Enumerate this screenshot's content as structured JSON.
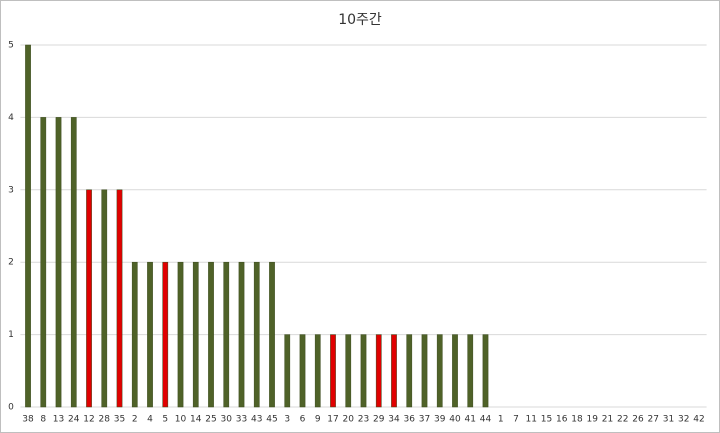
{
  "chart_data": {
    "type": "bar",
    "title": "10주간",
    "categories": [
      "38",
      "8",
      "13",
      "24",
      "12",
      "28",
      "35",
      "2",
      "4",
      "5",
      "10",
      "14",
      "25",
      "30",
      "33",
      "43",
      "45",
      "3",
      "6",
      "9",
      "17",
      "20",
      "23",
      "29",
      "34",
      "36",
      "37",
      "39",
      "40",
      "41",
      "44",
      "1",
      "7",
      "11",
      "15",
      "16",
      "18",
      "19",
      "21",
      "22",
      "26",
      "27",
      "31",
      "32",
      "42"
    ],
    "values": [
      5,
      4,
      4,
      4,
      3,
      3,
      3,
      2,
      2,
      2,
      2,
      2,
      2,
      2,
      2,
      2,
      2,
      1,
      1,
      1,
      1,
      1,
      1,
      1,
      1,
      1,
      1,
      1,
      1,
      1,
      1,
      0,
      0,
      0,
      0,
      0,
      0,
      0,
      0,
      0,
      0,
      0,
      0,
      0,
      0
    ],
    "colors": [
      "#4f6228",
      "#4f6228",
      "#4f6228",
      "#4f6228",
      "#e00000",
      "#4f6228",
      "#e00000",
      "#4f6228",
      "#4f6228",
      "#e00000",
      "#4f6228",
      "#4f6228",
      "#4f6228",
      "#4f6228",
      "#4f6228",
      "#4f6228",
      "#4f6228",
      "#4f6228",
      "#4f6228",
      "#4f6228",
      "#e00000",
      "#4f6228",
      "#4f6228",
      "#e00000",
      "#e00000",
      "#4f6228",
      "#4f6228",
      "#4f6228",
      "#4f6228",
      "#4f6228",
      "#4f6228",
      "#4f6228",
      "#4f6228",
      "#4f6228",
      "#4f6228",
      "#4f6228",
      "#4f6228",
      "#4f6228",
      "#4f6228",
      "#4f6228",
      "#4f6228",
      "#4f6228",
      "#4f6228",
      "#4f6228",
      "#4f6228"
    ],
    "ylim": [
      0,
      5
    ],
    "yticks": [
      0,
      1,
      2,
      3,
      4,
      5
    ],
    "grid": true
  }
}
